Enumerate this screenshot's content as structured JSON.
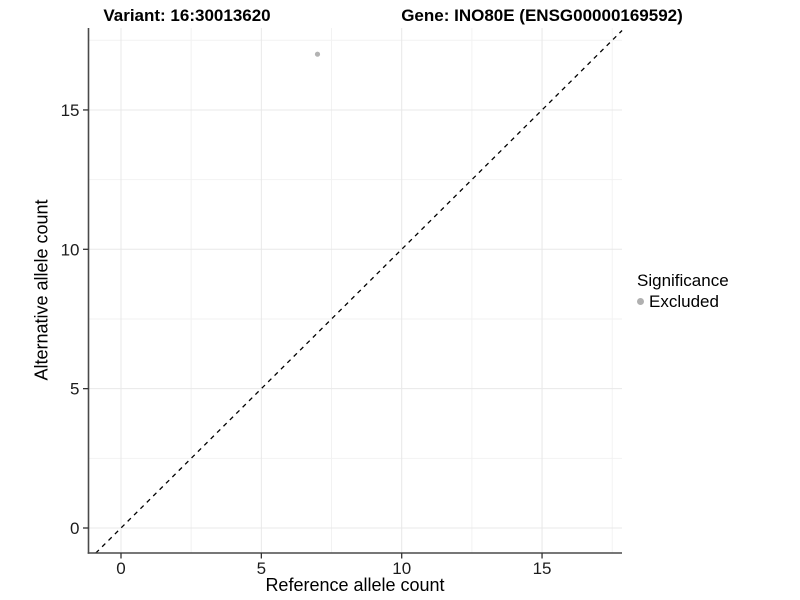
{
  "chart_data": {
    "type": "scatter",
    "titles": {
      "variant": "Variant: 16:30013620",
      "gene": "Gene: INO80E (ENSG00000169592)"
    },
    "xlabel": "Reference allele count",
    "ylabel": "Alternative allele count",
    "x_ticks": [
      0,
      5,
      10,
      15
    ],
    "x_minor_ticks": [
      2.5,
      7.5,
      12.5,
      17.5
    ],
    "y_ticks": [
      0,
      5,
      10,
      15
    ],
    "y_minor_ticks": [
      2.5,
      7.5,
      12.5,
      17.5
    ],
    "xlim": [
      -1.18,
      17.85
    ],
    "ylim": [
      -0.9,
      17.9
    ],
    "grid": "major+minor",
    "series": [
      {
        "name": "Excluded",
        "color": "#b3b3b3",
        "marker": "circle",
        "points": [
          [
            7,
            17
          ]
        ]
      }
    ],
    "reference_line": {
      "kind": "identity",
      "equation": "y = x",
      "style": "dashed",
      "color": "#000000"
    },
    "legend": {
      "title": "Significance",
      "position": "right",
      "items": [
        {
          "label": "Excluded",
          "color": "#b0b0b0",
          "marker": "circle"
        }
      ]
    }
  },
  "colors": {
    "background": "#ffffff",
    "grid_major": "#e8e8e8",
    "grid_minor": "#f2f2f2",
    "axis_line": "#4a4a4a",
    "tick": "#333333",
    "text": "#000000"
  }
}
